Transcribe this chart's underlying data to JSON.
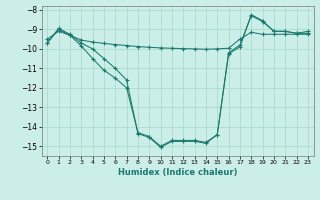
{
  "title": "",
  "xlabel": "Humidex (Indice chaleur)",
  "bg_color": "#cceee8",
  "grid_color": "#aaddcc",
  "line_color": "#1a7a6e",
  "xlim": [
    -0.5,
    23.5
  ],
  "ylim": [
    -15.5,
    -7.8
  ],
  "xticks": [
    0,
    1,
    2,
    3,
    4,
    5,
    6,
    7,
    8,
    9,
    10,
    11,
    12,
    13,
    14,
    15,
    16,
    17,
    18,
    19,
    20,
    21,
    22,
    23
  ],
  "yticks": [
    -8,
    -9,
    -10,
    -11,
    -12,
    -13,
    -14,
    -15
  ],
  "line1": [
    [
      0,
      -9.5
    ],
    [
      1,
      -9.1
    ],
    [
      2,
      -9.3
    ],
    [
      3,
      -9.55
    ],
    [
      4,
      -9.65
    ],
    [
      5,
      -9.72
    ],
    [
      6,
      -9.78
    ],
    [
      7,
      -9.83
    ],
    [
      8,
      -9.88
    ],
    [
      9,
      -9.92
    ],
    [
      10,
      -9.95
    ],
    [
      11,
      -9.97
    ],
    [
      12,
      -9.99
    ],
    [
      13,
      -10.0
    ],
    [
      14,
      -10.02
    ],
    [
      15,
      -10.0
    ],
    [
      16,
      -9.97
    ],
    [
      17,
      -9.5
    ],
    [
      18,
      -9.15
    ],
    [
      19,
      -9.25
    ],
    [
      20,
      -9.25
    ],
    [
      21,
      -9.25
    ],
    [
      22,
      -9.25
    ],
    [
      23,
      -9.25
    ]
  ],
  "line2": [
    [
      0,
      -9.7
    ],
    [
      1,
      -9.0
    ],
    [
      2,
      -9.3
    ],
    [
      3,
      -9.85
    ],
    [
      4,
      -10.5
    ],
    [
      5,
      -11.1
    ],
    [
      6,
      -11.5
    ],
    [
      7,
      -12.0
    ],
    [
      8,
      -14.3
    ],
    [
      9,
      -14.5
    ],
    [
      10,
      -15.0
    ],
    [
      11,
      -14.7
    ],
    [
      12,
      -14.7
    ],
    [
      13,
      -14.7
    ],
    [
      14,
      -14.8
    ],
    [
      15,
      -14.4
    ],
    [
      16,
      -10.2
    ],
    [
      17,
      -9.8
    ],
    [
      18,
      -8.3
    ],
    [
      19,
      -8.6
    ],
    [
      20,
      -9.1
    ],
    [
      21,
      -9.1
    ],
    [
      22,
      -9.2
    ],
    [
      23,
      -9.2
    ]
  ],
  "line3": [
    [
      0,
      -9.7
    ],
    [
      1,
      -8.95
    ],
    [
      2,
      -9.25
    ],
    [
      3,
      -9.7
    ],
    [
      4,
      -10.0
    ],
    [
      5,
      -10.5
    ],
    [
      6,
      -11.0
    ],
    [
      7,
      -11.6
    ],
    [
      8,
      -14.35
    ],
    [
      9,
      -14.55
    ],
    [
      10,
      -15.05
    ],
    [
      11,
      -14.75
    ],
    [
      12,
      -14.75
    ],
    [
      13,
      -14.75
    ],
    [
      14,
      -14.85
    ],
    [
      15,
      -14.4
    ],
    [
      16,
      -10.25
    ],
    [
      17,
      -9.9
    ],
    [
      18,
      -8.25
    ],
    [
      19,
      -8.55
    ],
    [
      20,
      -9.1
    ],
    [
      21,
      -9.1
    ],
    [
      22,
      -9.2
    ],
    [
      23,
      -9.1
    ]
  ]
}
